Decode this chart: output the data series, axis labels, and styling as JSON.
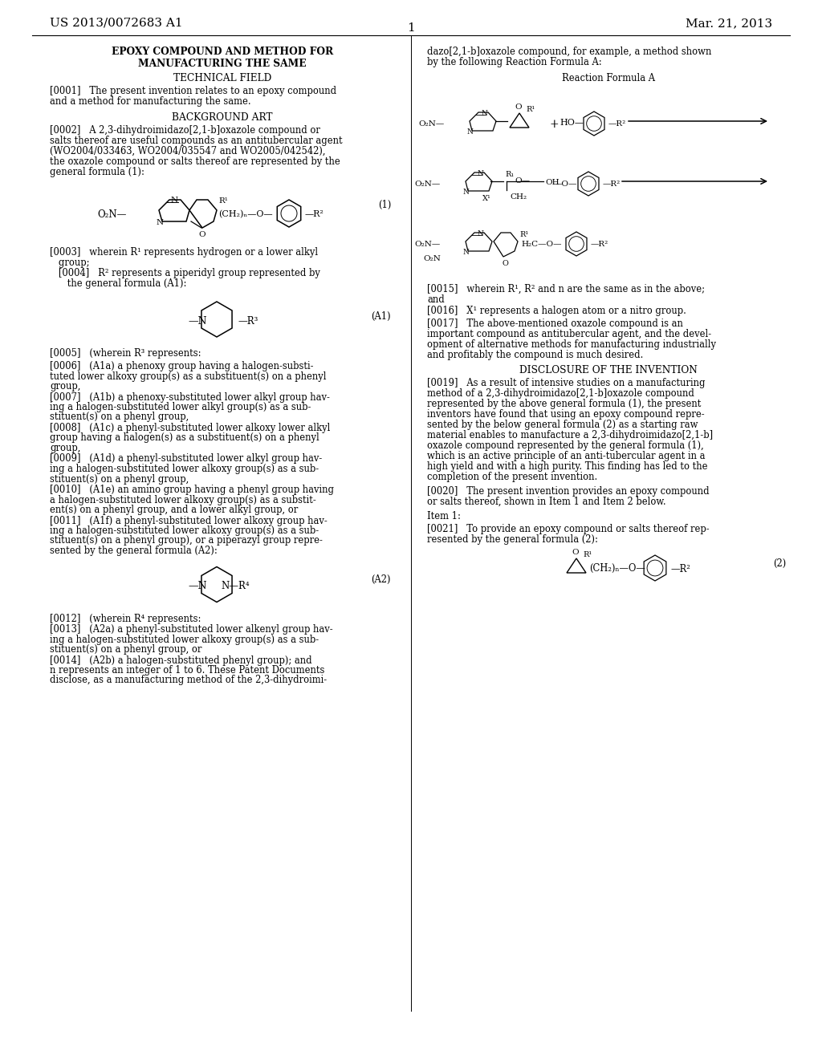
{
  "bg_color": "#ffffff",
  "left_header": "US 2013/0072683 A1",
  "right_header": "Mar. 21, 2013",
  "page_number": "1"
}
